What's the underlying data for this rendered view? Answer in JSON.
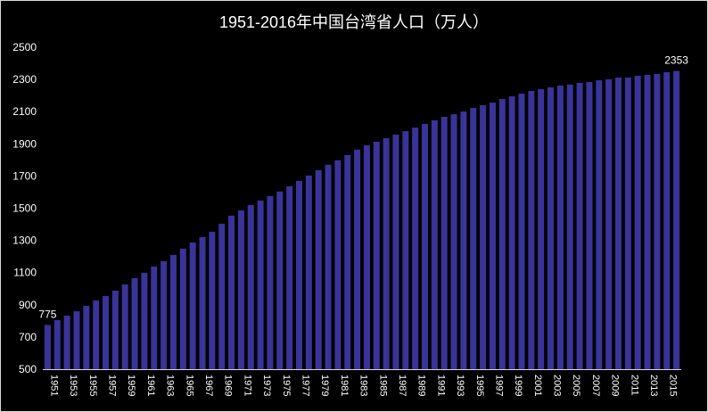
{
  "chart_data": {
    "type": "bar",
    "title": "1951-2016年中国台湾省人口（万人）",
    "xlabel": "",
    "ylabel": "",
    "ylim": [
      500,
      2500
    ],
    "yticks": [
      500,
      700,
      900,
      1100,
      1300,
      1500,
      1700,
      1900,
      2100,
      2300,
      2500
    ],
    "grid": false,
    "bar_color": "#3a3399",
    "categories": [
      "1951",
      "1952",
      "1953",
      "1954",
      "1955",
      "1956",
      "1957",
      "1958",
      "1959",
      "1960",
      "1961",
      "1962",
      "1963",
      "1964",
      "1965",
      "1966",
      "1967",
      "1968",
      "1969",
      "1970",
      "1971",
      "1972",
      "1973",
      "1974",
      "1975",
      "1976",
      "1977",
      "1978",
      "1979",
      "1980",
      "1981",
      "1982",
      "1983",
      "1984",
      "1985",
      "1986",
      "1987",
      "1988",
      "1989",
      "1990",
      "1991",
      "1992",
      "1993",
      "1994",
      "1995",
      "1996",
      "1997",
      "1998",
      "1999",
      "2000",
      "2001",
      "2002",
      "2003",
      "2004",
      "2005",
      "2006",
      "2007",
      "2008",
      "2009",
      "2010",
      "2011",
      "2012",
      "2013",
      "2014",
      "2015",
      "2016"
    ],
    "xtick_labels": [
      "1951",
      "1953",
      "1955",
      "1957",
      "1959",
      "1961",
      "1963",
      "1965",
      "1967",
      "1969",
      "1971",
      "1973",
      "1975",
      "1977",
      "1979",
      "1981",
      "1983",
      "1985",
      "1987",
      "1989",
      "1991",
      "1993",
      "1995",
      "1997",
      "1999",
      "2001",
      "2003",
      "2005",
      "2007",
      "2009",
      "2011",
      "2013",
      "2015"
    ],
    "values": [
      775,
      805,
      833,
      860,
      894,
      927,
      955,
      988,
      1027,
      1066,
      1099,
      1138,
      1171,
      1210,
      1249,
      1287,
      1321,
      1354,
      1404,
      1454,
      1487,
      1520,
      1548,
      1576,
      1604,
      1637,
      1670,
      1703,
      1737,
      1770,
      1798,
      1831,
      1864,
      1891,
      1913,
      1935,
      1957,
      1979,
      2001,
      2024,
      2046,
      2068,
      2084,
      2101,
      2123,
      2140,
      2156,
      2179,
      2195,
      2212,
      2229,
      2240,
      2251,
      2262,
      2268,
      2279,
      2284,
      2295,
      2301,
      2312,
      2312,
      2323,
      2329,
      2334,
      2345,
      2353
    ],
    "data_labels": [
      {
        "category": "1951",
        "text": "775"
      },
      {
        "category": "2016",
        "text": "2353"
      }
    ]
  }
}
